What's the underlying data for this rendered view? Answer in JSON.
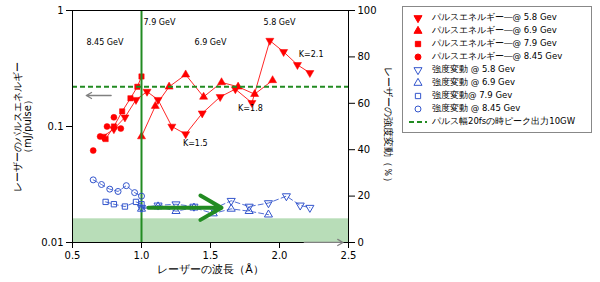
{
  "chart_data": {
    "type": "line",
    "xlabel": "レーザーの波長（Å）",
    "ylabel": "レーザーのパルスエネルギー\n（mJ/pulse）",
    "y2label": "レーザーの強度変動（％）",
    "xlim": [
      0.5,
      2.5
    ],
    "xticks": [
      0.5,
      {
        "value": 1,
        "label": "1.0"
      },
      1.5,
      {
        "value": 2,
        "label": "2.0"
      },
      2.5
    ],
    "ylim": [
      0.01,
      1.0
    ],
    "yticks": [
      0.01,
      0.1,
      1
    ],
    "log": "y",
    "y2lim": [
      0,
      100
    ],
    "y2ticks": [
      0,
      20,
      40,
      60,
      80,
      100
    ],
    "grid": false,
    "legend": "right",
    "series": [
      {
        "name": "パルスエネルギー―@ 5.8 Gev",
        "color": "red",
        "marker": "triangle-down",
        "line_style": "solid",
        "x": [
          0.72,
          0.8,
          0.88,
          0.96,
          1.04,
          1.12,
          1.22,
          1.32,
          1.44,
          1.57,
          1.68,
          1.8,
          1.93,
          2.03,
          2.13,
          2.22
        ],
        "values": [
          0.082,
          0.095,
          0.12,
          0.17,
          0.2,
          0.17,
          0.1,
          0.086,
          0.13,
          0.18,
          0.21,
          0.16,
          0.55,
          0.44,
          0.34,
          0.29
        ]
      },
      {
        "name": "パルスエネルギー―@ 6.9 Gev",
        "color": "red",
        "marker": "triangle",
        "line_style": "solid",
        "x": [
          1.0,
          1.1,
          1.2,
          1.32,
          1.45,
          1.58,
          1.7,
          1.82,
          1.95
        ],
        "values": [
          0.082,
          0.15,
          0.22,
          0.28,
          0.18,
          0.24,
          0.22,
          0.19,
          0.25
        ]
      },
      {
        "name": "パルスエネルギー―@ 7.9 Gev",
        "color": "red",
        "marker": "square",
        "line_style": "solid",
        "x": [
          0.74,
          0.8,
          0.86,
          0.92,
          0.97,
          1.0
        ],
        "values": [
          0.078,
          0.1,
          0.135,
          0.175,
          0.22,
          0.27
        ]
      },
      {
        "name": "パルスエネルギー―@ 8.45 Gev",
        "color": "red",
        "marker": "circle",
        "line_style": "none",
        "x": [
          0.65,
          0.7,
          0.75,
          0.8,
          0.85
        ],
        "values": [
          0.062,
          0.082,
          0.1,
          0.12,
          0.096
        ]
      },
      {
        "name": "強度変動 @ 5.8 Gev",
        "color": "#3355CC",
        "marker": "triangle-down-open",
        "line_style": "dashed",
        "axis": "y2",
        "x": [
          1.0,
          1.12,
          1.25,
          1.38,
          1.52,
          1.65,
          1.78,
          1.92,
          2.05,
          2.15,
          2.22
        ],
        "values": [
          15.0,
          16.0,
          16.5,
          15.5,
          14.5,
          18.0,
          15.5,
          17.0,
          20.0,
          16.0,
          15.0
        ]
      },
      {
        "name": "強度変動 @ 6.9 Gev",
        "color": "#3355CC",
        "marker": "triangle-open",
        "line_style": "dashed",
        "axis": "y2",
        "x": [
          1.0,
          1.12,
          1.25,
          1.38,
          1.52,
          1.65,
          1.78,
          1.92
        ],
        "values": [
          14.5,
          15.5,
          13.5,
          15.0,
          12.5,
          14.5,
          13.5,
          12.0
        ]
      },
      {
        "name": "強度変動@ 7.9 Gev",
        "color": "#3355CC",
        "marker": "square-open",
        "line_style": "dashed",
        "axis": "y2",
        "x": [
          0.74,
          0.8,
          0.88,
          0.96,
          1.0
        ],
        "values": [
          17.5,
          16.5,
          15.5,
          17.5,
          16.5
        ]
      },
      {
        "name": "強度変動 @ 8.45 Gev",
        "color": "#3355CC",
        "marker": "circle-open",
        "line_style": "dashed",
        "axis": "y2",
        "x": [
          0.65,
          0.71,
          0.77,
          0.83,
          0.89,
          0.95,
          1.0
        ],
        "values": [
          27.0,
          25.0,
          23.0,
          22.0,
          24.5,
          21.5,
          20.0
        ]
      }
    ],
    "hlines": [
      {
        "y": 0.22,
        "color": "#228B22",
        "line_style": "dashed",
        "name": "パルス幅20fsの時ピーク出力10GW"
      }
    ],
    "vlines": [
      {
        "x": 1.0,
        "color": "#228B22"
      }
    ],
    "shaded_regions": [
      {
        "ymin": 0.01,
        "ymax": 0.016,
        "color": "#b8ddb8"
      }
    ],
    "arrows": [
      {
        "x_start": 1.05,
        "x_end": 1.58,
        "y": 15.0,
        "color": "#228B22",
        "axis": "y2"
      },
      {
        "x_start": 0.78,
        "x_end": 0.6,
        "y": 0.185,
        "color": "gray",
        "axis": "y"
      },
      {
        "x_start": 2.18,
        "x_end": 2.46,
        "y": 0.022,
        "color": "gray",
        "axis": "y2"
      }
    ],
    "annotations": [
      {
        "text": "8.45 GeV",
        "x": 0.735,
        "y": 0.5,
        "align": "center"
      },
      {
        "text": "7.9 GeV",
        "x": 1.13,
        "y": 0.75,
        "align": "center"
      },
      {
        "text": "6.9 GeV",
        "x": 1.5,
        "y": 0.5,
        "align": "center"
      },
      {
        "text": "5.8 GeV",
        "x": 2.0,
        "y": 0.75,
        "align": "center"
      },
      {
        "text": "K=1.5",
        "x": 1.3,
        "y": 0.068,
        "align": "left"
      },
      {
        "text": "K=1.8",
        "x": 1.7,
        "y": 0.135,
        "align": "left"
      },
      {
        "text": "K=2.1",
        "x": 2.14,
        "y": 0.4,
        "align": "left"
      }
    ]
  }
}
